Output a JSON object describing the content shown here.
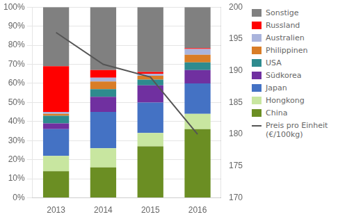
{
  "chart_data": {
    "type": "bar",
    "stacked": true,
    "categories": [
      "2013",
      "2014",
      "2015",
      "2016"
    ],
    "series": [
      {
        "name": "China",
        "color": "#6b8e23",
        "values": [
          14,
          16,
          27,
          36
        ]
      },
      {
        "name": "Hongkong",
        "color": "#c8e6a0",
        "values": [
          8,
          10,
          7,
          8
        ]
      },
      {
        "name": "Japan",
        "color": "#4472c4",
        "values": [
          14,
          19,
          16,
          16
        ]
      },
      {
        "name": "Südkorea",
        "color": "#7030a0",
        "values": [
          3,
          8,
          9,
          7
        ]
      },
      {
        "name": "USA",
        "color": "#2e8b8e",
        "values": [
          4,
          4,
          3,
          4
        ]
      },
      {
        "name": "Philippinen",
        "color": "#d97d27",
        "values": [
          1,
          4,
          2,
          4
        ]
      },
      {
        "name": "Australien",
        "color": "#aab4dc",
        "values": [
          1,
          2,
          1,
          3
        ]
      },
      {
        "name": "Russland",
        "color": "#ff0000",
        "values": [
          24,
          4,
          1,
          0.5
        ]
      },
      {
        "name": "Sonstige",
        "color": "#808080",
        "values": [
          31,
          33,
          34,
          21.5
        ]
      },
      {
        "name": "Preis pro Einheit\n(€/100kg)",
        "type": "line",
        "axis": "y2",
        "color": "#555555",
        "values": [
          196,
          191,
          189,
          180
        ]
      }
    ],
    "ylim": [
      0,
      100
    ],
    "yticks": [
      {
        "value": 0,
        "label": "0%"
      },
      {
        "value": 10,
        "label": "10%"
      },
      {
        "value": 20,
        "label": "20%"
      },
      {
        "value": 30,
        "label": "30%"
      },
      {
        "value": 40,
        "label": "40%"
      },
      {
        "value": 50,
        "label": "50%"
      },
      {
        "value": 60,
        "label": "60%"
      },
      {
        "value": 70,
        "label": "70%"
      },
      {
        "value": 80,
        "label": "80%"
      },
      {
        "value": 90,
        "label": "90%"
      },
      {
        "value": 100,
        "label": "100%"
      }
    ],
    "y2lim": [
      170,
      200
    ],
    "y2ticks": [
      170,
      175,
      180,
      185,
      190,
      195,
      200
    ],
    "grid": true,
    "legend": "right"
  }
}
